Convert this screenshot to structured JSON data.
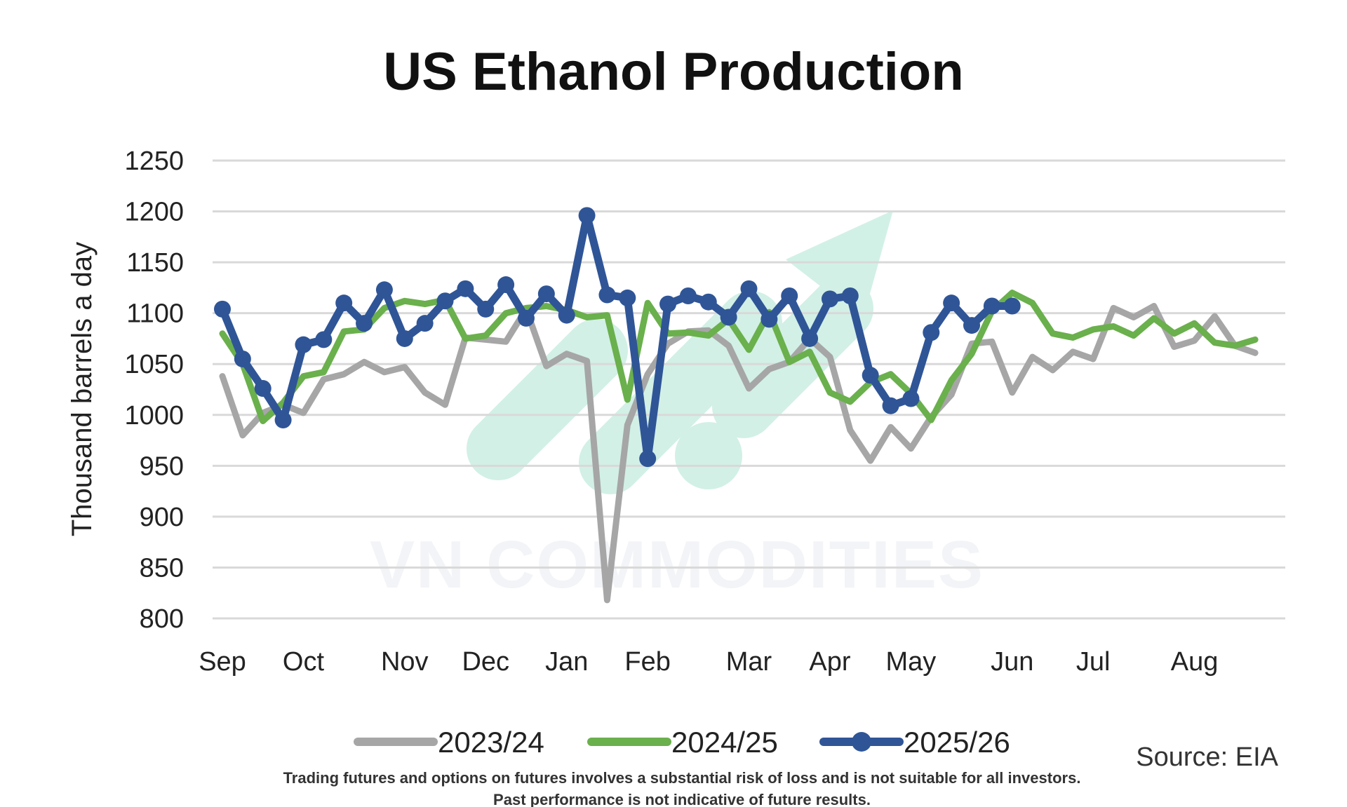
{
  "chart_data": {
    "type": "line",
    "title": "US Ethanol Production",
    "ylabel": "Thousand barrels a day",
    "xlabel": "",
    "ylim": [
      800,
      1250
    ],
    "yticks": [
      800,
      850,
      900,
      950,
      1000,
      1050,
      1100,
      1150,
      1200,
      1250
    ],
    "x_unit": "week",
    "x_range": [
      0,
      52
    ],
    "month_ticks": [
      {
        "label": "Sep",
        "x": 0
      },
      {
        "label": "Oct",
        "x": 4
      },
      {
        "label": "Nov",
        "x": 9
      },
      {
        "label": "Dec",
        "x": 13
      },
      {
        "label": "Jan",
        "x": 17
      },
      {
        "label": "Feb",
        "x": 21
      },
      {
        "label": "Mar",
        "x": 26
      },
      {
        "label": "Apr",
        "x": 30
      },
      {
        "label": "May",
        "x": 34
      },
      {
        "label": "Jun",
        "x": 39
      },
      {
        "label": "Jul",
        "x": 43
      },
      {
        "label": "Aug",
        "x": 48
      }
    ],
    "grid": true,
    "legend_position": "bottom",
    "series": [
      {
        "name": "2023/24",
        "color": "#a6a6a6",
        "markers": false,
        "values": [
          1038,
          980,
          1002,
          1010,
          1002,
          1035,
          1040,
          1052,
          1042,
          1047,
          1022,
          1010,
          1076,
          1074,
          1072,
          1104,
          1048,
          1060,
          1053,
          818,
          990,
          1040,
          1070,
          1082,
          1083,
          1068,
          1026,
          1045,
          1052,
          1075,
          1057,
          985,
          955,
          988,
          967,
          998,
          1020,
          1070,
          1072,
          1022,
          1057,
          1044,
          1062,
          1055,
          1105,
          1096,
          1107,
          1067,
          1073,
          1097,
          1068,
          1061
        ]
      },
      {
        "name": "2024/25",
        "color": "#6ab04c",
        "markers": false,
        "values": [
          1080,
          1050,
          994,
          1012,
          1038,
          1042,
          1082,
          1084,
          1105,
          1112,
          1109,
          1113,
          1075,
          1078,
          1100,
          1105,
          1107,
          1103,
          1096,
          1098,
          1015,
          1110,
          1080,
          1081,
          1078,
          1094,
          1064,
          1101,
          1052,
          1062,
          1022,
          1013,
          1032,
          1040,
          1021,
          995,
          1034,
          1060,
          1102,
          1120,
          1110,
          1080,
          1076,
          1084,
          1087,
          1078,
          1095,
          1080,
          1090,
          1071,
          1068,
          1074
        ]
      },
      {
        "name": "2025/26",
        "color": "#2f5597",
        "markers": true,
        "values": [
          1104,
          1055,
          1026,
          995,
          1069,
          1074,
          1110,
          1090,
          1123,
          1075,
          1090,
          1112,
          1124,
          1104,
          1128,
          1095,
          1119,
          1098,
          1196,
          1118,
          1115,
          957,
          1109,
          1117,
          1111,
          1096,
          1124,
          1094,
          1117,
          1075,
          1114,
          1117,
          1039,
          1009,
          1016,
          1081,
          1110,
          1088,
          1107,
          1107
        ]
      }
    ],
    "source": "Source: EIA"
  },
  "disclaimer": {
    "line1": "Trading futures and options on futures involves a substantial risk of loss and is not suitable for all investors.",
    "line2": "Past performance is not indicative of future results."
  },
  "watermark": {
    "text": "VN COMMODITIES",
    "accent": "#4dc3a0",
    "icon": "upward-trend-arrow-icon"
  }
}
